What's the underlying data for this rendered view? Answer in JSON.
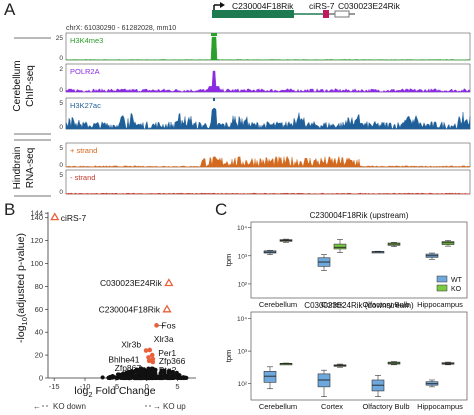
{
  "panel_a": {
    "letter": "A",
    "genes": {
      "gene1": "C230004F18Rik",
      "gene2": "ciRS-7",
      "gene3": "C030023E24Rik"
    },
    "coords": "chrX: 61030290 - 61282028, mm10",
    "group_labels": [
      "Cerebellum",
      "ChIP-seq",
      "Hindbrain",
      "RNA-seq"
    ],
    "tracks": [
      {
        "label": "H3K4me3",
        "color": "#2ca02c",
        "yticks": [
          "25",
          "0"
        ]
      },
      {
        "label": "POLR2A",
        "color": "#8a2be2",
        "yticks": [
          "2",
          "0"
        ]
      },
      {
        "label": "H3K27ac",
        "color": "#1f5f99",
        "yticks": [
          "5",
          "0"
        ]
      },
      {
        "label": "+ strand",
        "color": "#d2691e",
        "yticks": [
          "5",
          "0"
        ]
      },
      {
        "label": "- strand",
        "color": "#c0392b",
        "yticks": [
          "5",
          "0"
        ]
      }
    ]
  },
  "panel_b": {
    "letter": "B",
    "chart_data": {
      "type": "scatter",
      "title": "",
      "xlabel_pre": "log",
      "xlabel_sub": "2",
      "xlabel_post": " Fold Change",
      "ylabel_pre": "-log",
      "ylabel_sub": "10",
      "ylabel_post": "(adjusted p-value)",
      "xlim": [
        -16,
        8
      ],
      "ylim": [
        0,
        145
      ],
      "xticks": [
        -15,
        -10,
        -5,
        0,
        5
      ],
      "yticks": [
        0,
        20,
        40,
        60,
        80,
        100,
        120,
        140,
        144
      ],
      "direction_left": "KO down",
      "direction_right": "KO up",
      "highlight_color": "#e8613c",
      "labeled_points": [
        {
          "label": "ciRS-7",
          "x": -14.9,
          "y": 140.5,
          "marker": "triangle"
        },
        {
          "label": "C030023E24Rik",
          "x": 3.6,
          "y": 83,
          "marker": "triangle"
        },
        {
          "label": "C230004F18Rik",
          "x": 3.3,
          "y": 60,
          "marker": "triangle"
        },
        {
          "label": "Fos",
          "x": 1.6,
          "y": 46,
          "marker": "circle"
        },
        {
          "label": "Xlr3b",
          "x": -0.1,
          "y": 24,
          "marker": "circle"
        },
        {
          "label": "Xlr3a",
          "x": 0.5,
          "y": 24.5,
          "marker": "circle"
        },
        {
          "label": "Per1",
          "x": 0.9,
          "y": 20,
          "marker": "circle"
        },
        {
          "label": "Bhlhe41",
          "x": 0.3,
          "y": 18,
          "marker": "circle"
        },
        {
          "label": "Zfp366",
          "x": 1.0,
          "y": 16.5,
          "marker": "circle"
        },
        {
          "label": "Zfp867",
          "x": 0.4,
          "y": 15,
          "marker": "circle"
        },
        {
          "label": "Btg2",
          "x": 1.0,
          "y": 14,
          "marker": "circle"
        }
      ]
    }
  },
  "panel_c": {
    "letter": "C",
    "chart_data": [
      {
        "type": "box",
        "title": "C230004F18Rik (upstream)",
        "ylabel": "tpm",
        "log_y": true,
        "yticks": [
          "10³",
          "10²",
          "10⁴"
        ],
        "categories": [
          "Cerebellum",
          "Cortex",
          "Olfactory Bulb",
          "Hippocampus"
        ],
        "series": [
          {
            "name": "WT",
            "color": "#6fa8dc",
            "boxes": [
              [
                1100,
                1250,
                1350,
                1500,
                1550
              ],
              [
                300,
                420,
                600,
                850,
                1100
              ],
              [
                1300,
                1330,
                1380,
                1420,
                1450
              ],
              [
                750,
                880,
                1000,
                1150,
                1250
              ]
            ]
          },
          {
            "name": "KO",
            "color": "#7ac943",
            "boxes": [
              [
                3000,
                3250,
                3500,
                3750,
                3900
              ],
              [
                1300,
                1750,
                2000,
                2600,
                3800
              ],
              [
                2100,
                2350,
                2600,
                2850,
                3000
              ],
              [
                2200,
                2500,
                2900,
                3200,
                3500
              ]
            ]
          }
        ],
        "legend": [
          "WT",
          "KO"
        ]
      },
      {
        "type": "box",
        "title": "C030023E24Rik (downstream)",
        "ylabel": "tpm",
        "log_y": true,
        "yticks": [
          "10³",
          "10²",
          "10⁴"
        ],
        "categories": [
          "Cerebellum",
          "Cortex",
          "Olfactory Bulb",
          "Hippocampus"
        ],
        "series": [
          {
            "name": "WT",
            "color": "#6fa8dc",
            "boxes": [
              [
                70,
                110,
                170,
                240,
                330
              ],
              [
                40,
                80,
                130,
                200,
                260
              ],
              [
                40,
                60,
                90,
                130,
                180
              ],
              [
                80,
                90,
                100,
                115,
                130
              ]
            ]
          },
          {
            "name": "KO",
            "color": "#7ac943",
            "boxes": [
              [
                390,
                400,
                410,
                420,
                430
              ],
              [
                320,
                340,
                360,
                380,
                400
              ],
              [
                380,
                400,
                430,
                460,
                480
              ],
              [
                380,
                400,
                420,
                440,
                460
              ]
            ]
          }
        ]
      }
    ]
  }
}
